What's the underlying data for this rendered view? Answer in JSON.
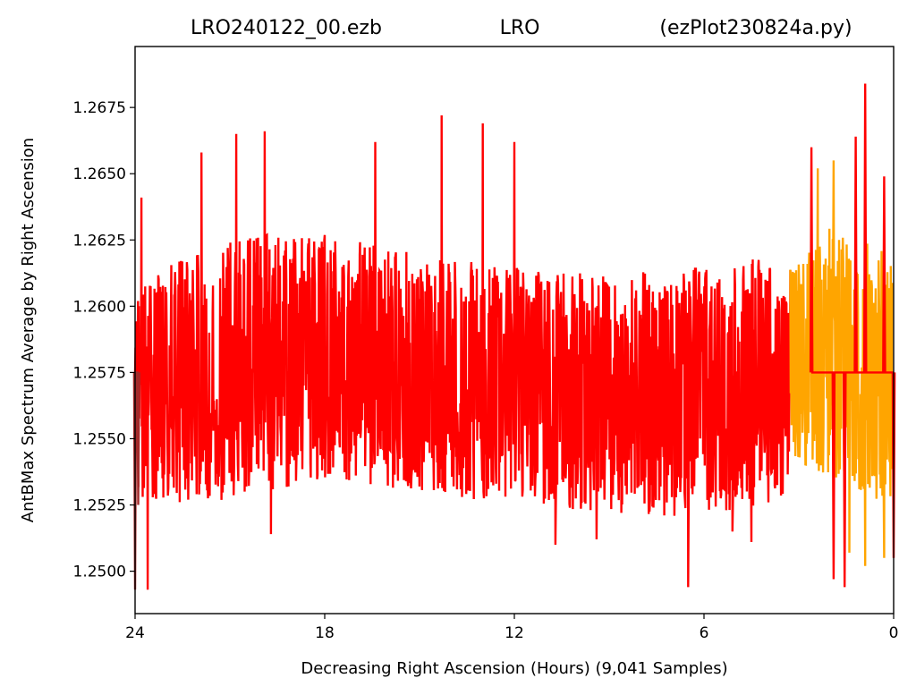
{
  "chart_data": {
    "type": "line",
    "title_parts": {
      "left": "LRO240122_00.ezb",
      "center": "LRO",
      "right": "(ezPlot230824a.py)"
    },
    "xlabel": "Decreasing Right Ascension (Hours) (9,041 Samples)",
    "ylabel": "AntBMax Spectrum Average by Right Ascension",
    "xlim": [
      24,
      0
    ],
    "ylim": [
      1.2484,
      1.2698
    ],
    "x_ticks": [
      "24",
      "18",
      "12",
      "6",
      "0"
    ],
    "y_ticks": [
      "1.2500",
      "1.2525",
      "1.2550",
      "1.2575",
      "1.2600",
      "1.2625",
      "1.2650",
      "1.2675"
    ],
    "grid": false,
    "legend": "none",
    "sample_count": 9041,
    "series": [
      {
        "color": "#ff0000",
        "x_range": [
          24,
          3.27
        ],
        "center_trend": [
          [
            24,
            1.2568
          ],
          [
            21,
            1.2575
          ],
          [
            18.5,
            1.2585
          ],
          [
            16,
            1.2578
          ],
          [
            13,
            1.2574
          ],
          [
            11,
            1.2572
          ],
          [
            8,
            1.2568
          ],
          [
            5,
            1.2572
          ],
          [
            3.27,
            1.2573
          ]
        ],
        "band_low": [
          [
            24,
            1.2525
          ],
          [
            21,
            1.2527
          ],
          [
            18,
            1.2535
          ],
          [
            15,
            1.253
          ],
          [
            12,
            1.2525
          ],
          [
            9,
            1.2522
          ],
          [
            6,
            1.252
          ],
          [
            3.27,
            1.2525
          ]
        ],
        "band_high": [
          [
            24,
            1.261
          ],
          [
            21,
            1.2625
          ],
          [
            19,
            1.263
          ],
          [
            17,
            1.2625
          ],
          [
            15,
            1.262
          ],
          [
            12,
            1.2615
          ],
          [
            9,
            1.2612
          ],
          [
            6,
            1.2615
          ],
          [
            3.27,
            1.262
          ]
        ],
        "extremes": [
          [
            23.8,
            1.2641
          ],
          [
            23.6,
            1.2493
          ],
          [
            21.9,
            1.2658
          ],
          [
            20.8,
            1.2665
          ],
          [
            19.9,
            1.2666
          ],
          [
            19.7,
            1.2514
          ],
          [
            16.4,
            1.2662
          ],
          [
            14.3,
            1.2672
          ],
          [
            13.0,
            1.2669
          ],
          [
            12.0,
            1.2662
          ],
          [
            10.7,
            1.251
          ],
          [
            9.4,
            1.2512
          ],
          [
            7.6,
            1.2524
          ],
          [
            6.5,
            1.2494
          ],
          [
            5.1,
            1.2515
          ],
          [
            4.5,
            1.2511
          ]
        ]
      },
      {
        "color": "#ffa500",
        "x_range": [
          3.27,
          0.05
        ],
        "center_trend": [
          [
            3.27,
            1.2573
          ],
          [
            2.5,
            1.258
          ],
          [
            1.5,
            1.2583
          ],
          [
            0.8,
            1.2575
          ],
          [
            0.05,
            1.257
          ]
        ],
        "band_low": [
          [
            3.27,
            1.2545
          ],
          [
            2.0,
            1.2532
          ],
          [
            1.0,
            1.253
          ],
          [
            0.05,
            1.252
          ]
        ],
        "band_high": [
          [
            3.27,
            1.2615
          ],
          [
            2.0,
            1.263
          ],
          [
            1.0,
            1.2625
          ],
          [
            0.05,
            1.262
          ]
        ],
        "extremes": [
          [
            2.4,
            1.2652
          ],
          [
            1.9,
            1.2655
          ],
          [
            1.4,
            1.2507
          ],
          [
            0.9,
            1.2502
          ],
          [
            0.3,
            1.2505
          ]
        ]
      },
      {
        "color": "#ff0000",
        "x_range": [
          3.3,
          0.0
        ],
        "overlay_spikes": [
          [
            2.6,
            1.266
          ],
          [
            1.9,
            1.2497
          ],
          [
            1.55,
            1.2494
          ],
          [
            1.2,
            1.2664
          ],
          [
            0.9,
            1.2684
          ],
          [
            0.3,
            1.2649
          ],
          [
            0.0,
            1.2505
          ]
        ]
      },
      {
        "color": "#a52a2a",
        "x_range": [
          24,
          23.8
        ],
        "overlay_spikes": [
          [
            24,
            1.2493
          ],
          [
            23.9,
            1.2525
          ]
        ]
      }
    ]
  }
}
